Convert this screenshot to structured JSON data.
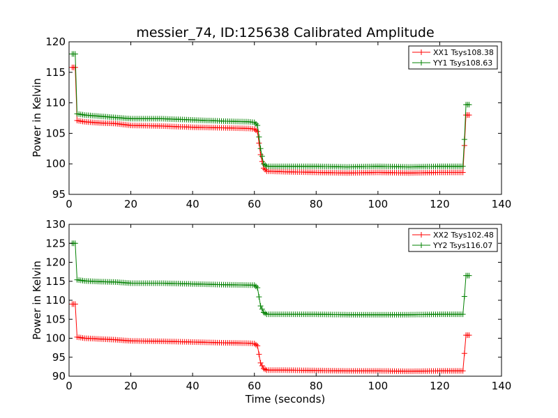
{
  "chart_data": [
    {
      "type": "line",
      "title": "messier_74, ID:125638 Calibrated Amplitude",
      "xlabel": "",
      "ylabel": "Power in Kelvin",
      "xlim": [
        0,
        140
      ],
      "ylim": [
        95,
        120
      ],
      "xticks": [
        0,
        20,
        40,
        60,
        80,
        100,
        120,
        140
      ],
      "yticks": [
        95,
        100,
        105,
        110,
        115,
        120
      ],
      "legend_position": "top-right",
      "grid": false,
      "series": [
        {
          "name": "XX1 Tsys108.38",
          "color": "#ff0000",
          "points": [
            [
              1,
              115.8
            ],
            [
              2,
              115.8
            ],
            [
              2.6,
              107.1
            ],
            [
              5,
              106.9
            ],
            [
              10,
              106.7
            ],
            [
              15,
              106.6
            ],
            [
              20,
              106.3
            ],
            [
              30,
              106.2
            ],
            [
              40,
              106.0
            ],
            [
              50,
              105.9
            ],
            [
              58,
              105.8
            ],
            [
              60,
              105.7
            ],
            [
              61,
              105.3
            ],
            [
              62,
              101.5
            ],
            [
              63,
              99.3
            ],
            [
              64,
              98.8
            ],
            [
              70,
              98.7
            ],
            [
              80,
              98.6
            ],
            [
              90,
              98.5
            ],
            [
              100,
              98.6
            ],
            [
              110,
              98.5
            ],
            [
              120,
              98.6
            ],
            [
              127.5,
              98.6
            ],
            [
              128,
              103.0
            ],
            [
              128.5,
              108.0
            ],
            [
              129.5,
              108.0
            ]
          ]
        },
        {
          "name": "YY1 Tsys108.63",
          "color": "#008000",
          "points": [
            [
              1,
              118.0
            ],
            [
              2,
              118.0
            ],
            [
              2.6,
              108.2
            ],
            [
              5,
              108.0
            ],
            [
              10,
              107.8
            ],
            [
              15,
              107.6
            ],
            [
              20,
              107.4
            ],
            [
              30,
              107.4
            ],
            [
              40,
              107.2
            ],
            [
              50,
              107.0
            ],
            [
              58,
              106.9
            ],
            [
              60,
              106.8
            ],
            [
              61,
              106.3
            ],
            [
              62,
              102.5
            ],
            [
              63,
              100.0
            ],
            [
              64,
              99.6
            ],
            [
              70,
              99.6
            ],
            [
              80,
              99.6
            ],
            [
              90,
              99.5
            ],
            [
              100,
              99.6
            ],
            [
              110,
              99.5
            ],
            [
              120,
              99.6
            ],
            [
              127.5,
              99.6
            ],
            [
              128,
              104.0
            ],
            [
              128.5,
              109.7
            ],
            [
              129.5,
              109.7
            ]
          ]
        }
      ]
    },
    {
      "type": "line",
      "title": "",
      "xlabel": "Time (seconds)",
      "ylabel": "Power in Kelvin",
      "xlim": [
        0,
        140
      ],
      "ylim": [
        90,
        130
      ],
      "xticks": [
        0,
        20,
        40,
        60,
        80,
        100,
        120,
        140
      ],
      "yticks": [
        90,
        95,
        100,
        105,
        110,
        115,
        120,
        125,
        130
      ],
      "legend_position": "top-right",
      "grid": false,
      "series": [
        {
          "name": "XX2 Tsys102.48",
          "color": "#ff0000",
          "points": [
            [
              1,
              109.0
            ],
            [
              2,
              109.0
            ],
            [
              2.6,
              100.3
            ],
            [
              5,
              100.0
            ],
            [
              10,
              99.8
            ],
            [
              15,
              99.6
            ],
            [
              20,
              99.3
            ],
            [
              30,
              99.2
            ],
            [
              40,
              99.0
            ],
            [
              50,
              98.8
            ],
            [
              58,
              98.7
            ],
            [
              60,
              98.6
            ],
            [
              61,
              98.0
            ],
            [
              62,
              93.5
            ],
            [
              63,
              92.0
            ],
            [
              64,
              91.6
            ],
            [
              70,
              91.6
            ],
            [
              80,
              91.5
            ],
            [
              90,
              91.4
            ],
            [
              100,
              91.4
            ],
            [
              110,
              91.3
            ],
            [
              120,
              91.4
            ],
            [
              127.5,
              91.4
            ],
            [
              128,
              96.0
            ],
            [
              128.5,
              100.8
            ],
            [
              129.5,
              100.8
            ]
          ]
        },
        {
          "name": "YY2 Tsys116.07",
          "color": "#008000",
          "points": [
            [
              1,
              125.0
            ],
            [
              2,
              125.0
            ],
            [
              2.6,
              115.4
            ],
            [
              5,
              115.1
            ],
            [
              10,
              114.9
            ],
            [
              15,
              114.8
            ],
            [
              20,
              114.5
            ],
            [
              30,
              114.5
            ],
            [
              40,
              114.3
            ],
            [
              50,
              114.1
            ],
            [
              58,
              114.0
            ],
            [
              60,
              114.0
            ],
            [
              61,
              113.3
            ],
            [
              62,
              108.5
            ],
            [
              63,
              106.8
            ],
            [
              64,
              106.3
            ],
            [
              70,
              106.3
            ],
            [
              80,
              106.3
            ],
            [
              90,
              106.2
            ],
            [
              100,
              106.2
            ],
            [
              110,
              106.2
            ],
            [
              120,
              106.3
            ],
            [
              127.5,
              106.3
            ],
            [
              128,
              111.0
            ],
            [
              128.5,
              116.5
            ],
            [
              129.5,
              116.5
            ]
          ]
        }
      ]
    }
  ]
}
